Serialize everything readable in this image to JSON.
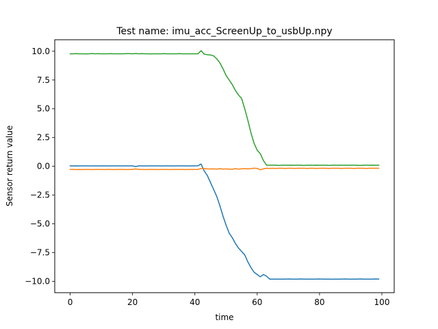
{
  "chart_data": {
    "type": "line",
    "title": "Test name: imu_acc_ScreenUp_to_usbUp.npy",
    "xlabel": "time",
    "ylabel": "Sensor return value",
    "xlim": [
      -4.95,
      103.95
    ],
    "ylim": [
      -10.98,
      11.0
    ],
    "xticks": [
      0,
      20,
      40,
      60,
      80,
      100
    ],
    "xtick_labels": [
      "0",
      "20",
      "40",
      "60",
      "80",
      "100"
    ],
    "yticks": [
      -10.0,
      -7.5,
      -5.0,
      -2.5,
      0.0,
      2.5,
      5.0,
      7.5,
      10.0
    ],
    "ytick_labels": [
      "−10.0",
      "−7.5",
      "−5.0",
      "−2.5",
      "0.0",
      "2.5",
      "5.0",
      "7.5",
      "10.0"
    ],
    "grid": false,
    "legend": "none",
    "series": [
      {
        "color": "#1f77b4",
        "x": [
          0,
          1,
          2,
          3,
          4,
          5,
          6,
          7,
          8,
          9,
          10,
          11,
          12,
          13,
          14,
          15,
          16,
          17,
          18,
          19,
          20,
          21,
          22,
          23,
          24,
          25,
          26,
          27,
          28,
          29,
          30,
          31,
          32,
          33,
          34,
          35,
          36,
          37,
          38,
          39,
          40,
          41,
          42,
          43,
          44,
          45,
          46,
          47,
          48,
          49,
          50,
          51,
          52,
          53,
          54,
          55,
          56,
          57,
          58,
          59,
          60,
          61,
          62,
          63,
          64,
          65,
          66,
          67,
          68,
          69,
          70,
          71,
          72,
          73,
          74,
          75,
          76,
          77,
          78,
          79,
          80,
          81,
          82,
          83,
          84,
          85,
          86,
          87,
          88,
          89,
          90,
          91,
          92,
          93,
          94,
          95,
          96,
          97,
          98,
          99
        ],
        "values": [
          0.04,
          0.03,
          0.04,
          0.03,
          0.04,
          0.04,
          0.03,
          0.04,
          0.04,
          0.03,
          0.04,
          0.04,
          0.03,
          0.04,
          0.04,
          0.04,
          0.03,
          0.04,
          0.04,
          0.04,
          0.04,
          -0.02,
          0.04,
          0.04,
          0.03,
          0.04,
          0.04,
          0.04,
          0.04,
          0.03,
          0.04,
          0.04,
          0.04,
          0.03,
          0.04,
          0.04,
          0.04,
          0.04,
          0.03,
          0.04,
          0.04,
          0.05,
          0.2,
          -0.4,
          -0.8,
          -1.4,
          -2.0,
          -2.6,
          -3.4,
          -4.3,
          -5.1,
          -5.8,
          -6.2,
          -6.7,
          -7.1,
          -7.4,
          -7.7,
          -8.3,
          -8.8,
          -9.2,
          -9.4,
          -9.6,
          -9.4,
          -9.55,
          -9.8,
          -9.8,
          -9.8,
          -9.8,
          -9.8,
          -9.8,
          -9.79,
          -9.8,
          -9.8,
          -9.8,
          -9.79,
          -9.8,
          -9.8,
          -9.8,
          -9.8,
          -9.8,
          -9.79,
          -9.8,
          -9.8,
          -9.8,
          -9.81,
          -9.8,
          -9.8,
          -9.8,
          -9.79,
          -9.8,
          -9.8,
          -9.8,
          -9.8,
          -9.79,
          -9.8,
          -9.8,
          -9.8,
          -9.8,
          -9.79,
          -9.8
        ]
      },
      {
        "color": "#ff7f0e",
        "x": [
          0,
          1,
          2,
          3,
          4,
          5,
          6,
          7,
          8,
          9,
          10,
          11,
          12,
          13,
          14,
          15,
          16,
          17,
          18,
          19,
          20,
          21,
          22,
          23,
          24,
          25,
          26,
          27,
          28,
          29,
          30,
          31,
          32,
          33,
          34,
          35,
          36,
          37,
          38,
          39,
          40,
          41,
          42,
          43,
          44,
          45,
          46,
          47,
          48,
          49,
          50,
          51,
          52,
          53,
          54,
          55,
          56,
          57,
          58,
          59,
          60,
          61,
          62,
          63,
          64,
          65,
          66,
          67,
          68,
          69,
          70,
          71,
          72,
          73,
          74,
          75,
          76,
          77,
          78,
          79,
          80,
          81,
          82,
          83,
          84,
          85,
          86,
          87,
          88,
          89,
          90,
          91,
          92,
          93,
          94,
          95,
          96,
          97,
          98,
          99
        ],
        "values": [
          -0.27,
          -0.27,
          -0.28,
          -0.27,
          -0.28,
          -0.27,
          -0.27,
          -0.28,
          -0.27,
          -0.27,
          -0.27,
          -0.28,
          -0.27,
          -0.27,
          -0.28,
          -0.27,
          -0.27,
          -0.27,
          -0.28,
          -0.27,
          -0.27,
          -0.22,
          -0.27,
          -0.27,
          -0.28,
          -0.27,
          -0.27,
          -0.27,
          -0.28,
          -0.27,
          -0.27,
          -0.27,
          -0.28,
          -0.27,
          -0.27,
          -0.27,
          -0.27,
          -0.28,
          -0.27,
          -0.27,
          -0.27,
          -0.27,
          -0.18,
          -0.2,
          -0.22,
          -0.23,
          -0.22,
          -0.24,
          -0.2,
          -0.24,
          -0.22,
          -0.24,
          -0.26,
          -0.2,
          -0.24,
          -0.22,
          -0.2,
          -0.22,
          -0.2,
          -0.16,
          -0.18,
          -0.3,
          -0.22,
          -0.17,
          -0.18,
          -0.17,
          -0.18,
          -0.17,
          -0.17,
          -0.18,
          -0.17,
          -0.17,
          -0.18,
          -0.17,
          -0.17,
          -0.17,
          -0.18,
          -0.17,
          -0.17,
          -0.18,
          -0.17,
          -0.17,
          -0.17,
          -0.18,
          -0.17,
          -0.17,
          -0.17,
          -0.18,
          -0.17,
          -0.17,
          -0.17,
          -0.18,
          -0.17,
          -0.17,
          -0.17,
          -0.18,
          -0.17,
          -0.17,
          -0.17,
          -0.17
        ]
      },
      {
        "color": "#2ca02c",
        "x": [
          0,
          1,
          2,
          3,
          4,
          5,
          6,
          7,
          8,
          9,
          10,
          11,
          12,
          13,
          14,
          15,
          16,
          17,
          18,
          19,
          20,
          21,
          22,
          23,
          24,
          25,
          26,
          27,
          28,
          29,
          30,
          31,
          32,
          33,
          34,
          35,
          36,
          37,
          38,
          39,
          40,
          41,
          42,
          43,
          44,
          45,
          46,
          47,
          48,
          49,
          50,
          51,
          52,
          53,
          54,
          55,
          56,
          57,
          58,
          59,
          60,
          61,
          62,
          63,
          64,
          65,
          66,
          67,
          68,
          69,
          70,
          71,
          72,
          73,
          74,
          75,
          76,
          77,
          78,
          79,
          80,
          81,
          82,
          83,
          84,
          85,
          86,
          87,
          88,
          89,
          90,
          91,
          92,
          93,
          94,
          95,
          96,
          97,
          98,
          99
        ],
        "values": [
          9.78,
          9.78,
          9.79,
          9.78,
          9.78,
          9.77,
          9.78,
          9.8,
          9.78,
          9.79,
          9.78,
          9.78,
          9.78,
          9.79,
          9.78,
          9.78,
          9.78,
          9.78,
          9.79,
          9.79,
          9.78,
          9.8,
          9.78,
          9.79,
          9.78,
          9.78,
          9.77,
          9.78,
          9.78,
          9.78,
          9.79,
          9.78,
          9.78,
          9.78,
          9.78,
          9.79,
          9.78,
          9.78,
          9.78,
          9.78,
          9.78,
          9.78,
          10.05,
          9.75,
          9.7,
          9.68,
          9.6,
          9.35,
          9.0,
          8.5,
          7.9,
          7.5,
          7.1,
          6.6,
          6.2,
          5.9,
          5.0,
          4.0,
          2.9,
          2.0,
          1.4,
          1.1,
          0.5,
          0.1,
          0.1,
          0.1,
          0.1,
          0.08,
          0.1,
          0.1,
          0.09,
          0.1,
          0.09,
          0.1,
          0.1,
          0.08,
          0.1,
          0.1,
          0.09,
          0.1,
          0.09,
          0.1,
          0.1,
          0.08,
          0.1,
          0.1,
          0.09,
          0.1,
          0.1,
          0.09,
          0.1,
          0.1,
          0.09,
          0.08,
          0.1,
          0.1,
          0.09,
          0.1,
          0.09,
          0.1
        ]
      }
    ]
  }
}
